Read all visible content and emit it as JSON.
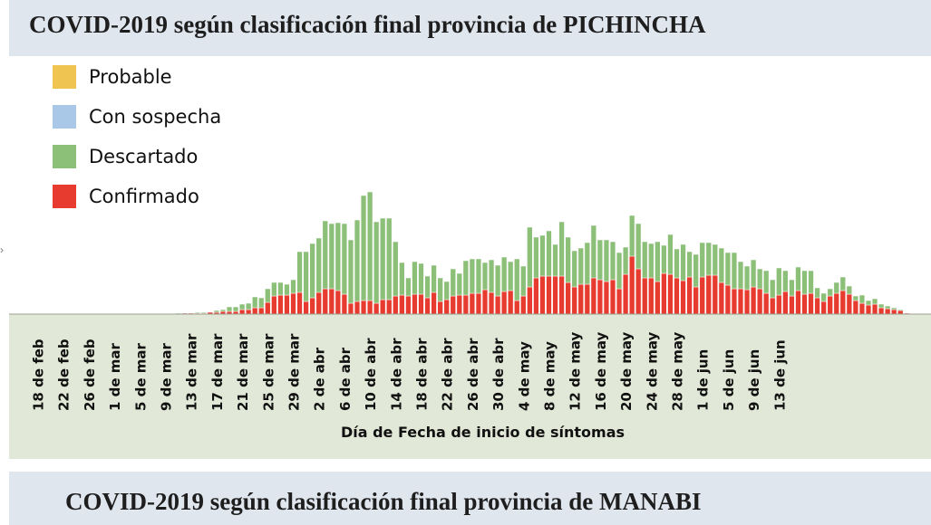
{
  "header": {
    "title": "COVID-2019 según clasificación final provincia de  PICHINCHA"
  },
  "next_header": {
    "title": "COVID-2019 según clasificación final provincia de  MANABI"
  },
  "chart_data": {
    "type": "bar",
    "stacked": true,
    "title": "COVID-2019 según clasificación final provincia de  PICHINCHA",
    "xlabel": "Día de Fecha de inicio de síntomas",
    "ylabel": "",
    "legend_position": "top-left",
    "grid": false,
    "start_date": "2020-02-18",
    "tick_labels": [
      "18 de feb",
      "22 de feb",
      "26 de feb",
      "1 de mar",
      "5 de mar",
      "9 de mar",
      "13 de mar",
      "17 de mar",
      "21 de mar",
      "25 de mar",
      "29 de mar",
      "2 de abr",
      "6 de abr",
      "10 de abr",
      "14 de abr",
      "18 de abr",
      "22 de abr",
      "26 de abr",
      "30 de abr",
      "4 de may",
      "8 de may",
      "12 de may",
      "16 de may",
      "20 de may",
      "24 de may",
      "28 de may",
      "1 de jun",
      "5 de jun",
      "9 de jun",
      "13 de jun"
    ],
    "legend": [
      {
        "name": "Probable",
        "color": "#f0c451"
      },
      {
        "name": "Con sospecha",
        "color": "#a9c8e8"
      },
      {
        "name": "Descartado",
        "color": "#8cc079"
      },
      {
        "name": "Confirmado",
        "color": "#e63b2e"
      }
    ],
    "series": [
      {
        "name": "Confirmado",
        "color": "#e63b2e",
        "values": [
          0,
          0,
          0,
          0,
          0,
          0,
          0,
          0,
          0,
          0,
          0,
          0,
          0,
          0,
          0,
          0,
          0,
          0,
          0,
          0,
          0,
          0,
          0,
          1,
          1,
          1,
          1,
          2,
          2,
          3,
          3,
          3,
          5,
          5,
          7,
          7,
          13,
          20,
          21,
          21,
          23,
          24,
          14,
          18,
          24,
          28,
          28,
          26,
          22,
          12,
          14,
          15,
          15,
          12,
          16,
          16,
          20,
          21,
          20,
          22,
          22,
          18,
          24,
          14,
          16,
          20,
          21,
          21,
          23,
          23,
          27,
          24,
          20,
          25,
          26,
          15,
          20,
          30,
          40,
          42,
          42,
          42,
          42,
          35,
          30,
          33,
          33,
          40,
          38,
          36,
          38,
          28,
          44,
          64,
          50,
          40,
          40,
          36,
          45,
          44,
          40,
          37,
          41,
          30,
          41,
          43,
          43,
          35,
          32,
          28,
          28,
          27,
          30,
          28,
          23,
          18,
          21,
          25,
          20,
          26,
          22,
          23,
          18,
          14,
          20,
          23,
          26,
          22,
          15,
          12,
          10,
          11,
          7,
          6,
          5,
          4,
          1,
          0
        ]
      },
      {
        "name": "Descartado",
        "color": "#8cc079",
        "values": [
          0,
          0,
          0,
          0,
          0,
          0,
          0,
          0,
          0,
          0,
          0,
          0,
          0,
          0,
          0,
          0,
          0,
          0,
          0,
          0,
          0,
          0,
          1,
          0,
          0,
          1,
          1,
          0,
          2,
          2,
          5,
          5,
          6,
          7,
          12,
          11,
          15,
          15,
          14,
          12,
          15,
          45,
          55,
          60,
          60,
          75,
          72,
          75,
          78,
          70,
          90,
          116,
          120,
          90,
          90,
          90,
          60,
          36,
          20,
          36,
          34,
          24,
          30,
          26,
          20,
          30,
          24,
          38,
          38,
          38,
          30,
          36,
          34,
          38,
          32,
          46,
          33,
          66,
          45,
          45,
          50,
          35,
          60,
          50,
          40,
          40,
          46,
          58,
          44,
          46,
          42,
          40,
          30,
          45,
          50,
          40,
          38,
          44,
          31,
          44,
          32,
          40,
          28,
          36,
          38,
          36,
          34,
          38,
          36,
          40,
          30,
          26,
          30,
          22,
          25,
          20,
          30,
          23,
          18,
          26,
          26,
          25,
          11,
          9,
          8,
          12,
          15,
          9,
          5,
          9,
          5,
          6,
          4,
          3,
          2,
          1,
          0,
          0
        ]
      },
      {
        "name": "Con sospecha",
        "color": "#a9c8e8",
        "values": [
          0,
          0,
          0,
          0,
          0,
          0,
          0,
          0,
          0,
          0,
          0,
          0,
          0,
          0,
          0,
          0,
          0,
          0,
          0,
          0,
          0,
          0,
          0,
          0,
          0,
          0,
          0,
          0,
          0,
          0,
          0,
          0,
          0,
          0,
          0,
          0,
          0,
          0,
          0,
          0,
          0,
          0,
          0,
          0,
          0,
          0,
          0,
          0,
          0,
          0,
          0,
          0,
          0,
          0,
          0,
          0,
          0,
          0,
          0,
          0,
          0,
          0,
          0,
          0,
          0,
          0,
          0,
          0,
          0,
          0,
          0,
          0,
          0,
          0,
          0,
          0,
          0,
          0,
          0,
          0,
          0,
          0,
          0,
          0,
          0,
          0,
          0,
          0,
          0,
          0,
          0,
          0,
          0,
          0,
          0,
          0,
          0,
          0,
          0,
          0,
          0,
          0,
          0,
          0,
          0,
          0,
          0,
          0,
          0,
          0,
          0,
          0,
          0,
          0,
          0,
          0,
          0,
          0,
          0,
          0,
          0,
          0,
          0,
          0,
          0,
          0,
          0,
          0,
          0,
          0,
          0,
          0,
          0,
          0,
          0,
          0,
          0,
          0,
          0
        ]
      },
      {
        "name": "Probable",
        "color": "#f0c451",
        "values": [
          0,
          0,
          0,
          0,
          0,
          0,
          0,
          0,
          0,
          0,
          0,
          0,
          0,
          0,
          0,
          0,
          0,
          0,
          0,
          0,
          0,
          0,
          0,
          0,
          0,
          0,
          0,
          0,
          0,
          0,
          0,
          0,
          0,
          0,
          0,
          0,
          0,
          0,
          0,
          0,
          0,
          0,
          0,
          0,
          0,
          0,
          0,
          0,
          0,
          0,
          0,
          0,
          0,
          0,
          0,
          0,
          0,
          0,
          0,
          0,
          0,
          0,
          0,
          0,
          0,
          0,
          0,
          0,
          0,
          0,
          0,
          0,
          0,
          0,
          0,
          0,
          0,
          0,
          0,
          0,
          0,
          0,
          0,
          0,
          0,
          0,
          0,
          0,
          0,
          0,
          0,
          0,
          0,
          0,
          0,
          0,
          0,
          0,
          0,
          0,
          0,
          0,
          0,
          0,
          0,
          0,
          0,
          0,
          0,
          0,
          0,
          0,
          0,
          0,
          0,
          0,
          0,
          0,
          0,
          0,
          0,
          0,
          0,
          0,
          0,
          0,
          0,
          0,
          0,
          0,
          0,
          0,
          0,
          0,
          0,
          0,
          0,
          0,
          0
        ]
      }
    ]
  }
}
